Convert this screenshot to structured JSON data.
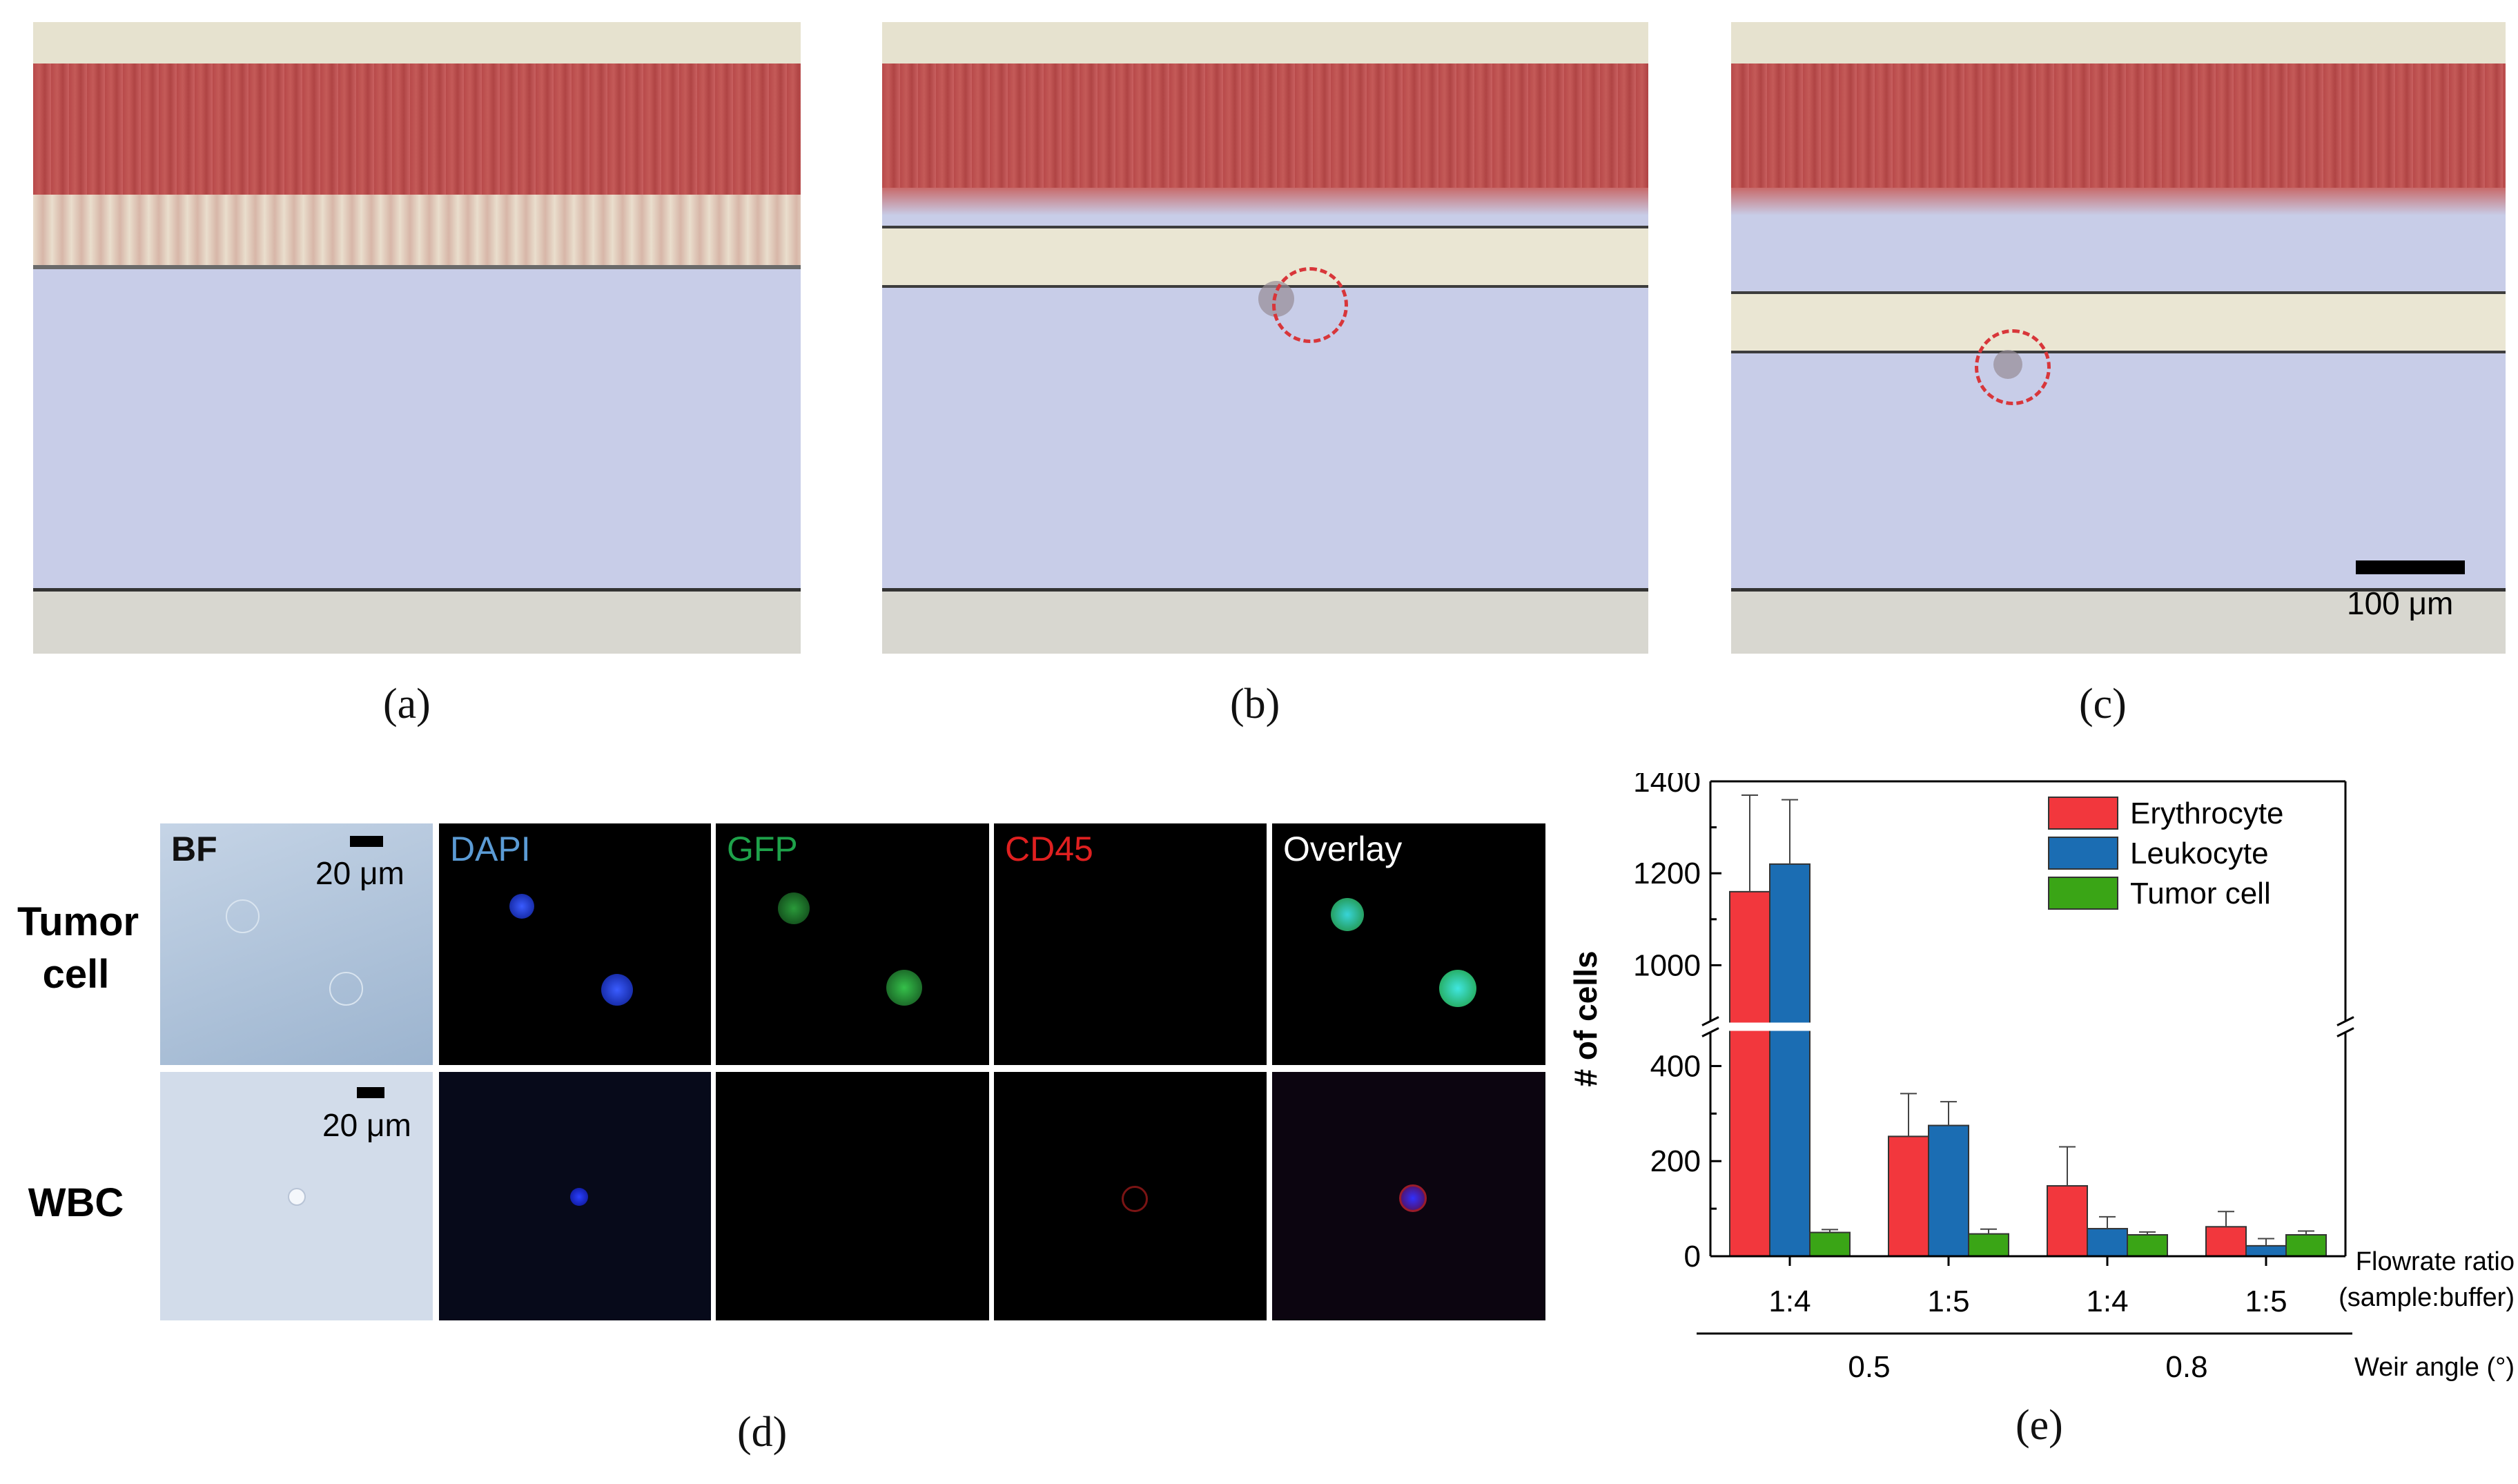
{
  "captions": {
    "a": "(a)",
    "b": "(b)",
    "c": "(c)",
    "d": "(d)",
    "e": "(e)"
  },
  "scale_bar_c": "100 μm",
  "panel_d": {
    "columns": [
      "BF",
      "DAPI",
      "GFP",
      "CD45",
      "Overlay"
    ],
    "rows": [
      "Tumor cell",
      "WBC"
    ],
    "scale_bar": "20 μm",
    "colors": {
      "DAPI": "#5b9bd5",
      "GFP": "#1ea24a",
      "CD45": "#e02020",
      "Overlay": "#ffffff",
      "BF": "#111111"
    }
  },
  "chart_data": {
    "type": "bar",
    "categories": [
      "1:4",
      "1:5",
      "1:4",
      "1:5"
    ],
    "group_labels": [
      "0.5",
      "0.8"
    ],
    "xlabel_right_1": "Flowrate ratio",
    "xlabel_right_2": "(sample:buffer)",
    "xlabel_right_3": "Weir angle (°)",
    "ylabel": "# of cells",
    "yticks_low": [
      "0",
      "200",
      "400"
    ],
    "yticks_high": [
      "1000",
      "1200",
      "1400"
    ],
    "broken_axis": true,
    "series": [
      {
        "name": "Erythrocyte",
        "color": "#f2373d",
        "values": [
          1160,
          252,
          148,
          62
        ],
        "errors": [
          210,
          90,
          82,
          32
        ]
      },
      {
        "name": "Leukocyte",
        "color": "#1b6db3",
        "values": [
          1220,
          275,
          58,
          22
        ],
        "errors": [
          140,
          50,
          25,
          15
        ]
      },
      {
        "name": "Tumor cell",
        "color": "#3aa516",
        "values": [
          50,
          47,
          45,
          45
        ],
        "errors": [
          6,
          10,
          6,
          8
        ]
      }
    ],
    "legend_position": "top-right"
  }
}
